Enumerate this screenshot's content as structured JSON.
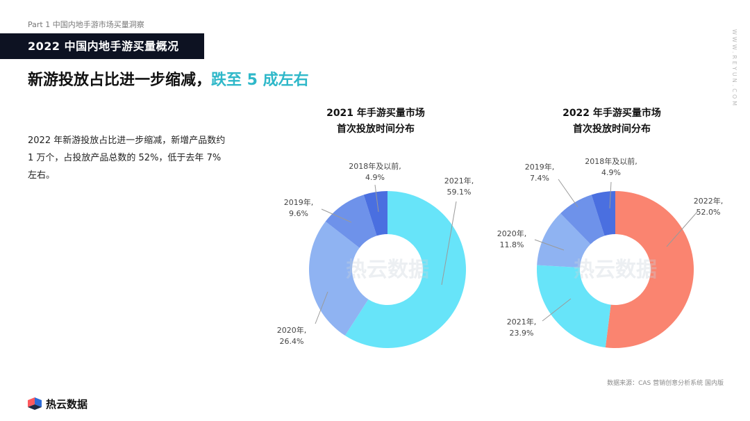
{
  "header": {
    "part_label": "Part 1  中国内地手游市场买量洞察",
    "title_bar": "2022 中国内地手游买量概况",
    "headline_main": "新游投放占比进一步缩减，",
    "headline_accent": "跌至 5 成左右",
    "side_url": "WWW.REYUN.COM"
  },
  "body": {
    "paragraph": "2022 年新游投放占比进一步缩减，新增产品数约 1 万个，占投放产品总数的 52%，低于去年 7% 左右。"
  },
  "footer": {
    "source": "数据来源：CAS 营销创意分析系统 国内版",
    "brand": "热云数据"
  },
  "watermark": "热云数据",
  "colors": {
    "accent": "#2fb8c9",
    "title_bar_bg": "#0d1222",
    "slice_2018": "#4a6fe0",
    "slice_2019": "#6e92ea",
    "slice_2020": "#8fb3f2",
    "slice_2021": "#67e4f9",
    "slice_2022": "#fa8470"
  },
  "chart_data": [
    {
      "type": "pie",
      "variant": "donut",
      "title_line1": "2021 年手游买量市场",
      "title_line2": "首次投放时间分布",
      "slices": [
        {
          "label": "2021年,",
          "value": 59.1,
          "display": "59.1%",
          "color": "#67e4f9"
        },
        {
          "label": "2020年,",
          "value": 26.4,
          "display": "26.4%",
          "color": "#8fb3f2"
        },
        {
          "label": "2019年,",
          "value": 9.6,
          "display": "9.6%",
          "color": "#6e92ea"
        },
        {
          "label": "2018年及以前,",
          "value": 4.9,
          "display": "4.9%",
          "color": "#4a6fe0"
        }
      ]
    },
    {
      "type": "pie",
      "variant": "donut",
      "title_line1": "2022 年手游买量市场",
      "title_line2": "首次投放时间分布",
      "slices": [
        {
          "label": "2022年,",
          "value": 52.0,
          "display": "52.0%",
          "color": "#fa8470"
        },
        {
          "label": "2021年,",
          "value": 23.9,
          "display": "23.9%",
          "color": "#67e4f9"
        },
        {
          "label": "2020年,",
          "value": 11.8,
          "display": "11.8%",
          "color": "#8fb3f2"
        },
        {
          "label": "2019年,",
          "value": 7.4,
          "display": "7.4%",
          "color": "#6e92ea"
        },
        {
          "label": "2018年及以前,",
          "value": 4.9,
          "display": "4.9%",
          "color": "#4a6fe0"
        }
      ]
    }
  ]
}
